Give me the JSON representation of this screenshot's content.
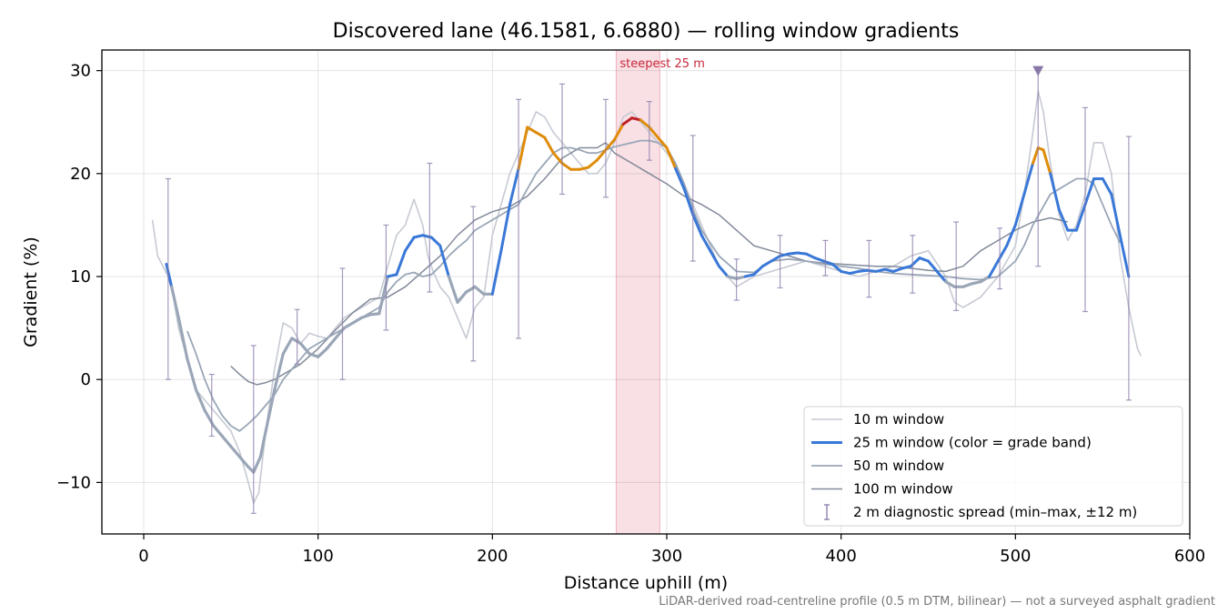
{
  "chart_data": {
    "type": "line",
    "title": "Discovered lane (46.1581, 6.6880) — rolling window gradients",
    "xlabel": "Distance uphill (m)",
    "ylabel": "Gradient (%)",
    "xlim": [
      -24,
      600
    ],
    "ylim": [
      -15,
      32
    ],
    "xticks": [
      0,
      100,
      200,
      300,
      400,
      500,
      600
    ],
    "yticks": [
      -10,
      0,
      10,
      20,
      30
    ],
    "ytick_labels": [
      "−10",
      "0",
      "10",
      "20",
      "30"
    ],
    "grid": true,
    "legend_position": "lower right",
    "highlight_band": {
      "x": [
        271,
        296
      ],
      "label": "steepest 25 m",
      "color": "#d6405a"
    },
    "peak_marker": {
      "x": 513,
      "y": 30,
      "color": "#8878a8"
    },
    "grade_band_colors": {
      "10-20": "#3a78d8",
      "20-25": "#de8c0a",
      "25+": "#c0202a"
    },
    "footnote": "LiDAR-derived road-centreline profile (0.5 m DTM, bilinear) — not a surveyed asphalt gradient",
    "series": [
      {
        "name": "10 m window",
        "color": "#c6cad3",
        "x": [
          5,
          8,
          11,
          14,
          17,
          20,
          25,
          30,
          35,
          40,
          45,
          50,
          55,
          60,
          63,
          66,
          70,
          75,
          80,
          85,
          90,
          95,
          100,
          105,
          110,
          115,
          120,
          125,
          130,
          135,
          140,
          145,
          150,
          155,
          160,
          163,
          166,
          170,
          175,
          180,
          185,
          190,
          195,
          200,
          205,
          210,
          215,
          220,
          225,
          230,
          235,
          240,
          245,
          250,
          255,
          260,
          265,
          270,
          275,
          280,
          285,
          290,
          295,
          300,
          305,
          310,
          320,
          330,
          340,
          350,
          360,
          370,
          380,
          390,
          400,
          410,
          420,
          430,
          440,
          450,
          460,
          465,
          470,
          480,
          490,
          500,
          505,
          510,
          513,
          516,
          520,
          525,
          530,
          535,
          540,
          545,
          550,
          555,
          560,
          565,
          570,
          572
        ],
        "y": [
          15.5,
          12,
          11,
          10,
          8,
          5,
          2,
          -1,
          -2,
          -3,
          -4,
          -5,
          -7,
          -10,
          -12,
          -11,
          -5,
          1,
          5.5,
          5,
          3.5,
          4.5,
          4.2,
          4,
          5,
          6,
          6.5,
          7,
          7.5,
          8,
          11,
          14,
          15,
          17.5,
          15,
          12,
          10.5,
          9,
          8,
          6,
          4,
          7,
          8,
          14,
          17,
          20,
          22,
          24,
          26,
          25.5,
          24,
          23,
          22,
          21,
          20,
          20,
          21,
          23,
          25.5,
          26,
          25,
          24,
          23,
          22,
          21,
          19,
          15,
          11,
          9,
          10,
          10.5,
          11,
          11.5,
          11,
          10.5,
          10,
          10.5,
          11,
          12,
          12.5,
          10,
          7.5,
          7,
          8,
          10,
          13,
          18,
          24,
          28,
          26,
          21,
          16,
          13.5,
          15,
          18,
          23,
          23,
          20,
          12,
          7,
          3,
          2.3
        ]
      },
      {
        "name": "25 m window (color = grade band)",
        "color": "#3a78d8",
        "x": [
          13,
          16,
          20,
          25,
          30,
          35,
          40,
          45,
          50,
          55,
          60,
          63,
          67,
          70,
          75,
          80,
          85,
          90,
          95,
          100,
          105,
          110,
          115,
          120,
          125,
          130,
          135,
          140,
          145,
          150,
          155,
          160,
          165,
          170,
          175,
          180,
          185,
          190,
          195,
          200,
          205,
          210,
          215,
          220,
          225,
          230,
          235,
          240,
          245,
          250,
          255,
          260,
          265,
          270,
          275,
          280,
          285,
          290,
          295,
          300,
          305,
          310,
          315,
          320,
          325,
          330,
          335,
          340,
          345,
          350,
          355,
          360,
          365,
          370,
          375,
          380,
          385,
          390,
          395,
          400,
          405,
          410,
          415,
          420,
          425,
          430,
          435,
          440,
          445,
          450,
          455,
          460,
          465,
          470,
          475,
          480,
          485,
          490,
          495,
          500,
          505,
          510,
          513,
          516,
          520,
          525,
          530,
          535,
          540,
          545,
          550,
          555,
          560,
          565
        ],
        "y": [
          11.2,
          9,
          6,
          2,
          -1,
          -3,
          -4.5,
          -5.5,
          -6.5,
          -7.5,
          -8.5,
          -9,
          -7.5,
          -5,
          -1,
          2.5,
          4,
          3.5,
          2.5,
          2.2,
          3,
          4,
          5,
          5.5,
          6,
          6.3,
          6.4,
          10,
          10.2,
          12.5,
          13.8,
          14,
          13.8,
          13,
          10,
          7.5,
          8.5,
          9,
          8.3,
          8.3,
          12.5,
          17,
          20.5,
          24.5,
          24,
          23.5,
          22,
          21,
          20.4,
          20.4,
          20.6,
          21.3,
          22.3,
          23.3,
          24.8,
          25.4,
          25.2,
          24.5,
          23.5,
          22.5,
          20.5,
          18.5,
          16,
          14,
          12.5,
          11,
          10,
          9.8,
          10,
          10.2,
          11,
          11.5,
          12,
          12.2,
          12.3,
          12.2,
          11.8,
          11.5,
          11.2,
          10.5,
          10.3,
          10.5,
          10.6,
          10.5,
          10.7,
          10.5,
          10.8,
          11,
          11.8,
          11.5,
          10.5,
          9.5,
          9,
          9,
          9.3,
          9.5,
          10,
          11.5,
          13,
          15,
          18,
          21,
          22.5,
          22.3,
          20,
          16.5,
          14.5,
          14.5,
          17,
          19.5,
          19.5,
          18,
          14,
          10
        ]
      },
      {
        "name": "50 m window",
        "color": "#9aa6b7",
        "x": [
          25,
          30,
          35,
          40,
          45,
          50,
          55,
          60,
          65,
          70,
          75,
          80,
          85,
          90,
          95,
          100,
          105,
          110,
          115,
          120,
          125,
          130,
          135,
          140,
          145,
          150,
          155,
          160,
          165,
          170,
          175,
          180,
          185,
          190,
          195,
          200,
          205,
          210,
          215,
          220,
          225,
          230,
          235,
          240,
          245,
          250,
          255,
          260,
          265,
          270,
          275,
          280,
          285,
          290,
          295,
          300,
          305,
          310,
          315,
          320,
          330,
          340,
          350,
          360,
          370,
          380,
          390,
          400,
          410,
          420,
          430,
          440,
          450,
          460,
          470,
          480,
          490,
          500,
          505,
          510,
          515,
          520,
          525,
          530,
          535,
          540,
          545,
          550,
          555,
          560
        ],
        "y": [
          4.7,
          2.5,
          0,
          -2,
          -3.5,
          -4.5,
          -5,
          -4.3,
          -3.5,
          -2.5,
          -1.5,
          0,
          1,
          2,
          3,
          3.5,
          4,
          4.5,
          5,
          5.5,
          6,
          6.5,
          7,
          8.5,
          9.5,
          10.2,
          10.4,
          10,
          10.2,
          11,
          12,
          12.8,
          13.5,
          14.5,
          15,
          15.5,
          16,
          16.5,
          17,
          18.5,
          20,
          21,
          22,
          22.5,
          22.5,
          22.3,
          22,
          22,
          22.3,
          22.6,
          22.8,
          23,
          23.2,
          23.2,
          23,
          22.5,
          21,
          19,
          16.5,
          14.5,
          12,
          10.5,
          10.4,
          11.5,
          11.7,
          11.5,
          11.2,
          11,
          10.8,
          10.5,
          10.3,
          10.2,
          10.1,
          10,
          9.8,
          9.7,
          10,
          11.5,
          13,
          15,
          16.5,
          18,
          18.5,
          19,
          19.5,
          19.5,
          19,
          17,
          15,
          13.3
        ]
      },
      {
        "name": "100 m window",
        "color": "#828a9a",
        "x": [
          50,
          55,
          60,
          65,
          70,
          75,
          80,
          90,
          100,
          110,
          120,
          130,
          140,
          150,
          160,
          170,
          180,
          190,
          200,
          210,
          220,
          230,
          240,
          250,
          260,
          265,
          270,
          280,
          290,
          300,
          310,
          320,
          330,
          340,
          350,
          360,
          370,
          380,
          390,
          400,
          410,
          420,
          430,
          440,
          450,
          460,
          470,
          480,
          490,
          500,
          510,
          520,
          530
        ],
        "y": [
          1.3,
          0.5,
          -0.2,
          -0.5,
          -0.3,
          0,
          0.5,
          1.5,
          3,
          4.8,
          6.5,
          7.8,
          8,
          9,
          10.5,
          12,
          14,
          15.5,
          16.3,
          16.8,
          17.8,
          19.5,
          21.5,
          22.5,
          22.5,
          23,
          22,
          21,
          20,
          19,
          17.8,
          17,
          16,
          14.5,
          13,
          12.5,
          12,
          11.5,
          11.3,
          11.2,
          11.1,
          11,
          11,
          10.8,
          10.6,
          10.5,
          11,
          12.5,
          13.5,
          14.5,
          15.3,
          15.7,
          15.3
        ]
      }
    ],
    "errorbars": {
      "name": "2 m diagnostic spread (min–max, ±12 m)",
      "color": "#8878a8",
      "points": [
        {
          "x": 14,
          "min": 0,
          "max": 19.5
        },
        {
          "x": 39,
          "min": -5.5,
          "max": 0.5
        },
        {
          "x": 63,
          "min": -13,
          "max": 3.3
        },
        {
          "x": 88,
          "min": 1.5,
          "max": 6.8
        },
        {
          "x": 114,
          "min": 0,
          "max": 10.8
        },
        {
          "x": 139,
          "min": 4.8,
          "max": 15
        },
        {
          "x": 164,
          "min": 8.5,
          "max": 21
        },
        {
          "x": 189,
          "min": 1.8,
          "max": 16.8
        },
        {
          "x": 215,
          "min": 4,
          "max": 27.2
        },
        {
          "x": 240,
          "min": 18,
          "max": 28.7
        },
        {
          "x": 265,
          "min": 17.7,
          "max": 27.2
        },
        {
          "x": 290,
          "min": 21.3,
          "max": 27
        },
        {
          "x": 315,
          "min": 11.5,
          "max": 23.7
        },
        {
          "x": 340,
          "min": 7.7,
          "max": 11.7
        },
        {
          "x": 365,
          "min": 8.9,
          "max": 14
        },
        {
          "x": 391,
          "min": 10.1,
          "max": 13.5
        },
        {
          "x": 416,
          "min": 8,
          "max": 13.5
        },
        {
          "x": 441,
          "min": 8.4,
          "max": 14
        },
        {
          "x": 466,
          "min": 6.7,
          "max": 15.3
        },
        {
          "x": 491,
          "min": 8.8,
          "max": 14.7
        },
        {
          "x": 513,
          "min": 11,
          "max": 30
        },
        {
          "x": 540,
          "min": 6.6,
          "max": 26.4
        },
        {
          "x": 565,
          "min": -2,
          "max": 23.6
        }
      ]
    }
  }
}
